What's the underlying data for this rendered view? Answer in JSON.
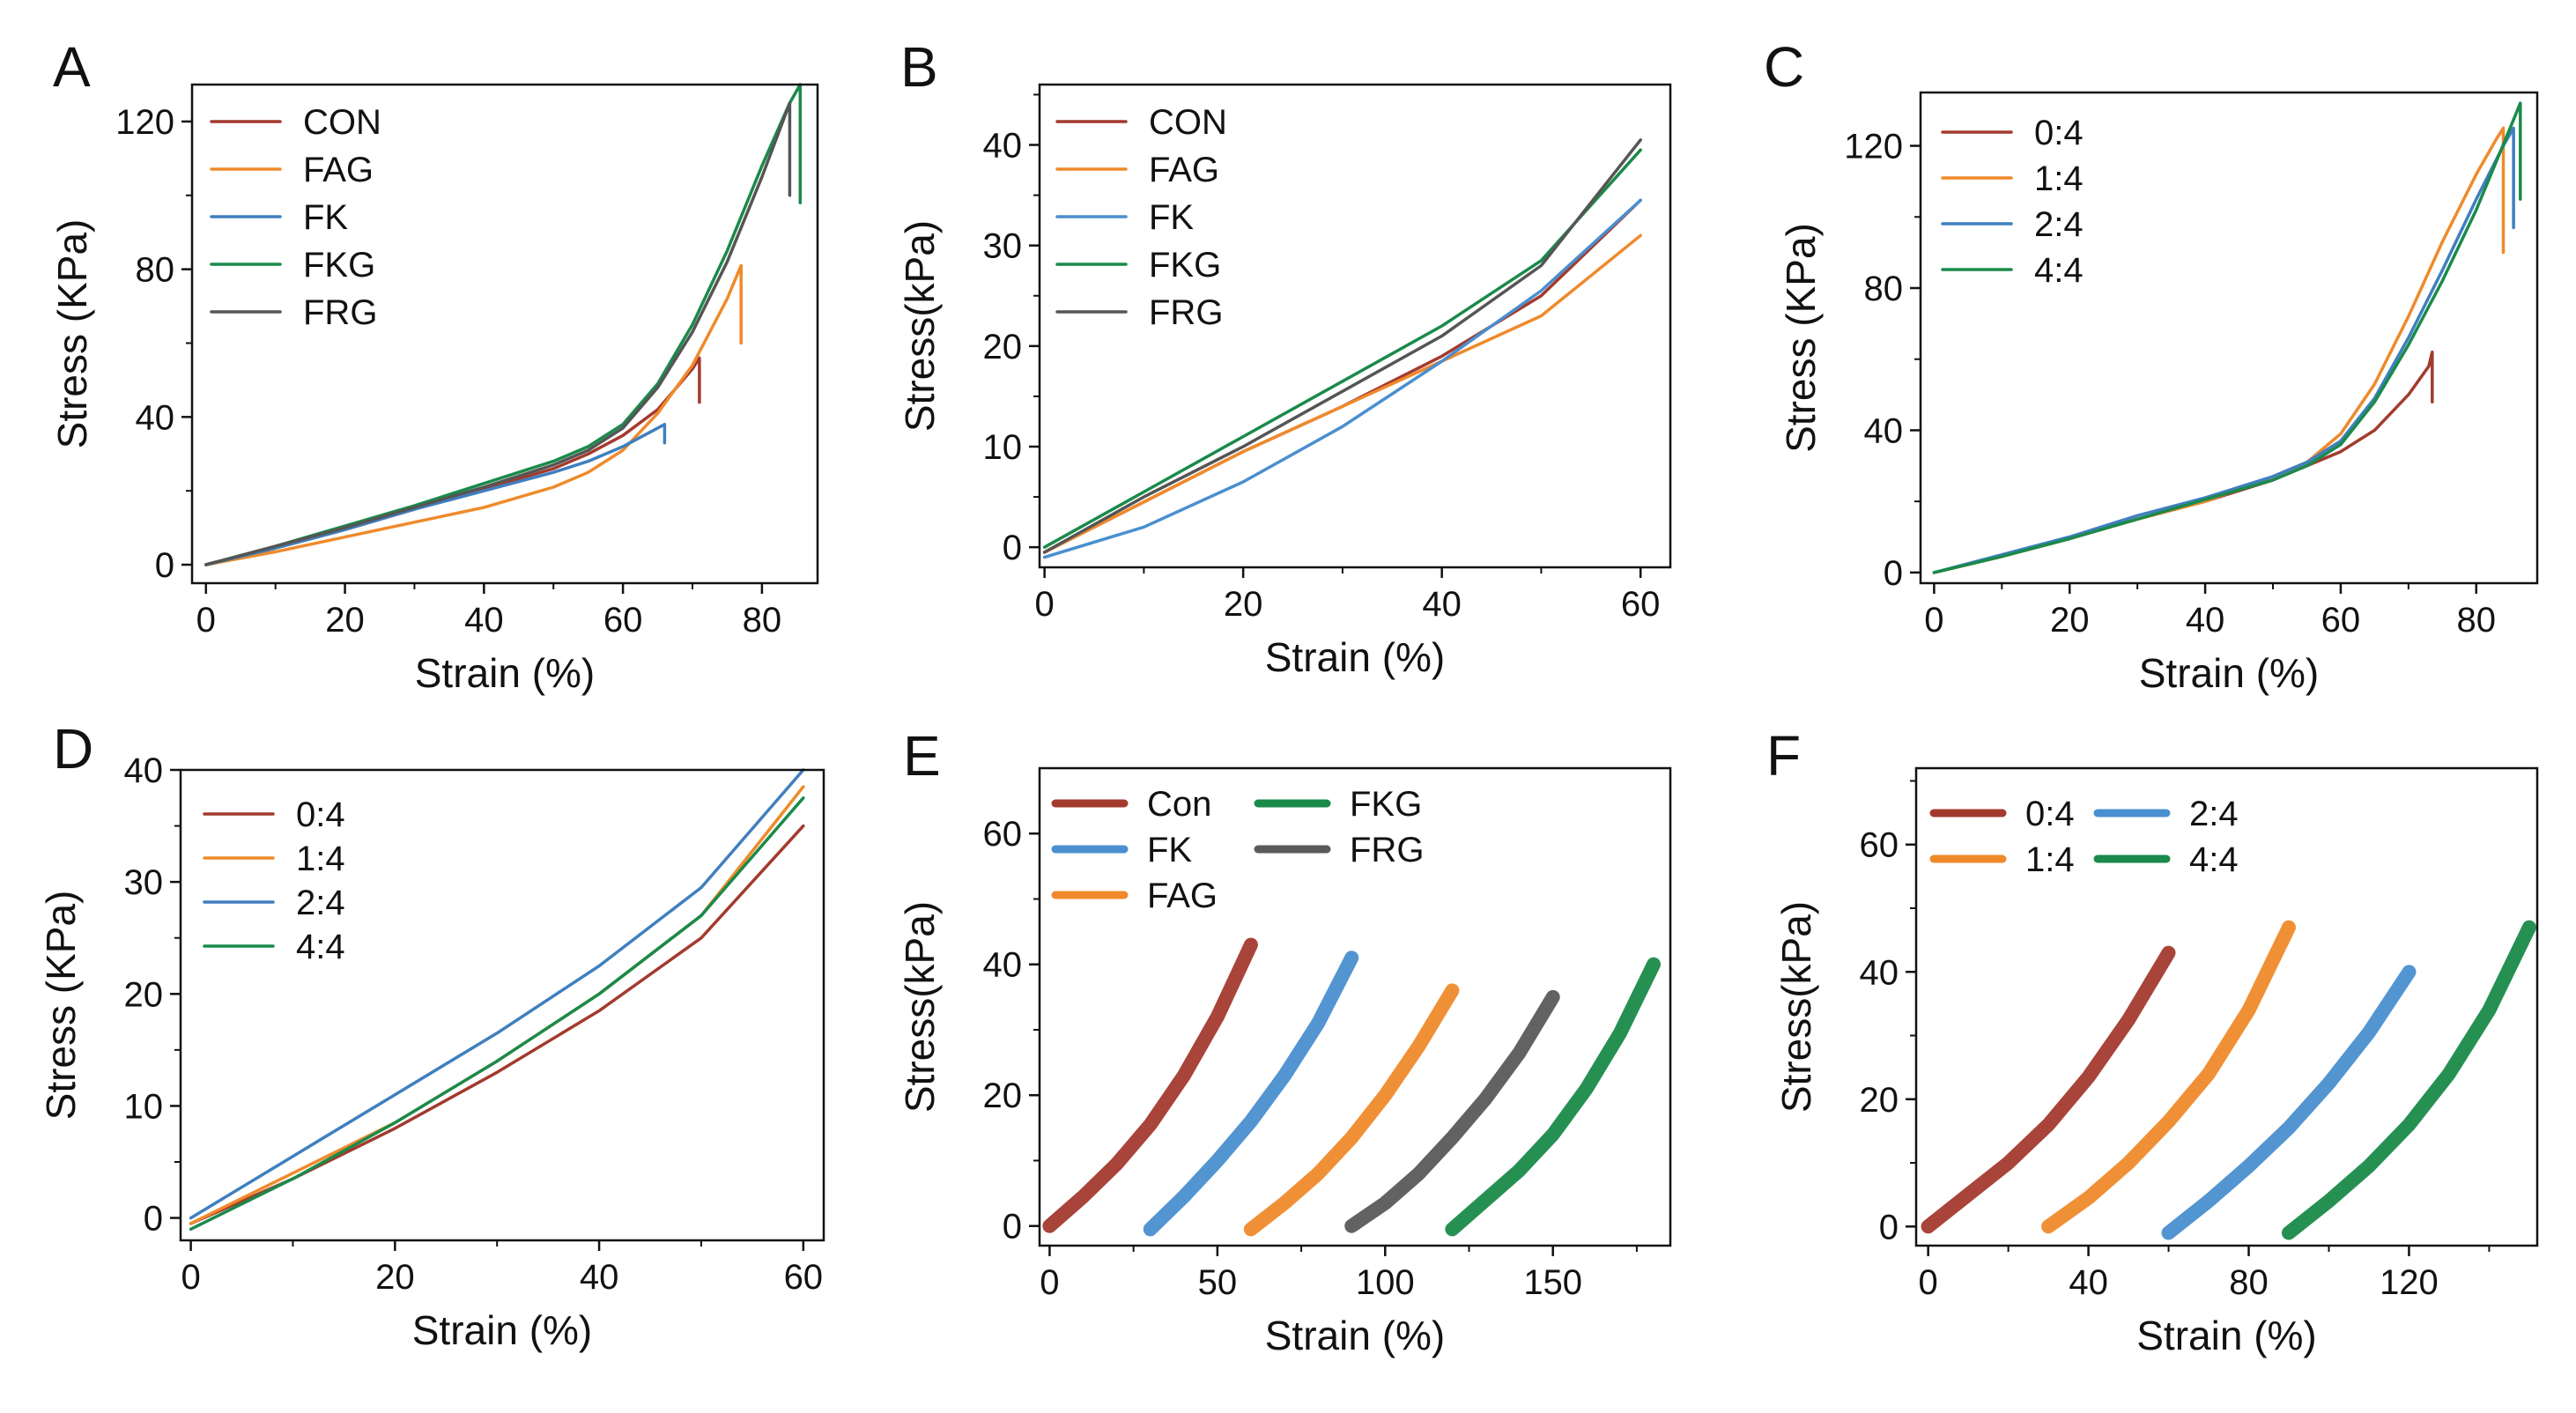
{
  "figure": {
    "type": "multi-panel-figure"
  },
  "chart_data": [
    {
      "panel": "A",
      "type": "line",
      "xlabel": "Strain (%)",
      "ylabel": "Stress (KPa)",
      "xlim": [
        -2,
        88
      ],
      "ylim": [
        -5,
        130
      ],
      "xticks": [
        0,
        20,
        40,
        60,
        80
      ],
      "yticks": [
        0,
        40,
        80,
        120
      ],
      "legend_pos": "top-left",
      "legend_layout": "single",
      "series": [
        {
          "name": "CON",
          "color": "#a33a2e",
          "x": [
            0,
            5,
            10,
            20,
            30,
            40,
            50,
            55,
            60,
            65,
            70,
            71,
            71
          ],
          "y": [
            0,
            2,
            4.5,
            9.5,
            15,
            20.5,
            26,
            30,
            35,
            42,
            53,
            56,
            44
          ]
        },
        {
          "name": "FAG",
          "color": "#ef8a2b",
          "x": [
            0,
            10,
            20,
            30,
            40,
            50,
            55,
            60,
            65,
            70,
            75,
            77,
            77
          ],
          "y": [
            0,
            3.5,
            7.5,
            11.5,
            15.5,
            21,
            25,
            31,
            41,
            54,
            72,
            81,
            60
          ]
        },
        {
          "name": "FK",
          "color": "#3f7fbf",
          "x": [
            0,
            10,
            20,
            30,
            40,
            50,
            55,
            60,
            65,
            66,
            66
          ],
          "y": [
            0,
            4.5,
            9.5,
            15,
            20,
            25,
            28,
            32,
            37,
            38,
            33
          ]
        },
        {
          "name": "FKG",
          "color": "#1a8a4a",
          "x": [
            0,
            10,
            20,
            30,
            40,
            50,
            55,
            60,
            65,
            70,
            75,
            80,
            84,
            85.5,
            85.5
          ],
          "y": [
            0,
            5,
            10.5,
            16,
            22,
            28,
            32,
            38,
            49,
            65,
            85,
            108,
            125,
            130,
            98
          ]
        },
        {
          "name": "FRG",
          "color": "#555555",
          "x": [
            0,
            10,
            20,
            30,
            40,
            50,
            55,
            60,
            65,
            70,
            75,
            80,
            83,
            84,
            84
          ],
          "y": [
            0,
            5,
            10,
            15.5,
            21,
            27,
            31,
            37,
            48,
            63,
            82,
            105,
            120,
            125,
            100
          ]
        }
      ]
    },
    {
      "panel": "B",
      "type": "line",
      "xlabel": "Strain (%)",
      "ylabel": "Stress(kPa)",
      "xlim": [
        -0.5,
        63
      ],
      "ylim": [
        -2,
        46
      ],
      "xticks": [
        0,
        20,
        40,
        60
      ],
      "yticks": [
        0,
        10,
        20,
        30,
        40
      ],
      "legend_pos": "top-left",
      "legend_layout": "single",
      "series": [
        {
          "name": "CON",
          "color": "#a33a2e",
          "x": [
            0,
            10,
            20,
            30,
            40,
            50,
            60
          ],
          "y": [
            -0.5,
            4.5,
            9.5,
            14,
            19,
            25,
            34.5
          ]
        },
        {
          "name": "FAG",
          "color": "#ef8a2b",
          "x": [
            0,
            10,
            20,
            30,
            40,
            50,
            60
          ],
          "y": [
            -0.5,
            4.5,
            9.5,
            14,
            18.5,
            23,
            31
          ]
        },
        {
          "name": "FK",
          "color": "#4a8fcf",
          "x": [
            0,
            10,
            20,
            30,
            40,
            50,
            60
          ],
          "y": [
            -1,
            2,
            6.5,
            12,
            18.5,
            25.5,
            34.5
          ]
        },
        {
          "name": "FKG",
          "color": "#1a8a4a",
          "x": [
            0,
            10,
            20,
            30,
            40,
            50,
            60
          ],
          "y": [
            0,
            5.5,
            11,
            16.5,
            22,
            28.5,
            39.5
          ]
        },
        {
          "name": "FRG",
          "color": "#555555",
          "x": [
            0,
            10,
            20,
            30,
            40,
            50,
            60
          ],
          "y": [
            -0.5,
            5,
            10,
            15.5,
            21,
            28,
            40.5
          ]
        }
      ]
    },
    {
      "panel": "C",
      "type": "line",
      "xlabel": "Strain (%)",
      "ylabel": "Stress (KPa)",
      "xlim": [
        -2,
        89
      ],
      "ylim": [
        -3,
        135
      ],
      "xticks": [
        0,
        20,
        40,
        60,
        80
      ],
      "yticks": [
        0,
        40,
        80,
        120
      ],
      "legend_pos": "top-left",
      "legend_layout": "single",
      "series": [
        {
          "name": "0:4",
          "color": "#a33a2e",
          "x": [
            0,
            10,
            20,
            30,
            40,
            50,
            55,
            60,
            65,
            70,
            73,
            73.5,
            73.5
          ],
          "y": [
            0,
            4.5,
            9.5,
            15,
            20,
            26,
            30,
            34,
            40,
            50,
            58,
            62,
            48
          ]
        },
        {
          "name": "1:4",
          "color": "#ef8a2b",
          "x": [
            0,
            10,
            20,
            30,
            40,
            50,
            55,
            60,
            65,
            70,
            75,
            80,
            83,
            84,
            84
          ],
          "y": [
            0,
            4.5,
            9.5,
            15,
            20,
            27,
            31,
            39,
            53,
            72,
            93,
            112,
            122,
            125,
            90
          ]
        },
        {
          "name": "2:4",
          "color": "#3f7fbf",
          "x": [
            0,
            10,
            20,
            30,
            40,
            50,
            55,
            60,
            65,
            70,
            75,
            80,
            84,
            85.5,
            85.5
          ],
          "y": [
            0,
            5,
            10,
            16,
            21,
            27,
            31,
            37,
            49,
            66,
            85,
            105,
            120,
            125,
            97
          ]
        },
        {
          "name": "4:4",
          "color": "#1a8a4a",
          "x": [
            0,
            10,
            20,
            30,
            40,
            50,
            55,
            60,
            65,
            70,
            75,
            80,
            85,
            86.5,
            86.5
          ],
          "y": [
            0,
            4.5,
            9.5,
            15,
            20.5,
            26,
            30,
            36,
            48,
            64,
            82,
            102,
            125,
            132,
            105
          ]
        }
      ]
    },
    {
      "panel": "D",
      "type": "line",
      "xlabel": "Strain (%)",
      "ylabel": "Stress (KPa)",
      "xlim": [
        -1,
        62
      ],
      "ylim": [
        -2,
        40
      ],
      "xticks": [
        0,
        20,
        40,
        60
      ],
      "yticks": [
        0,
        10,
        20,
        30,
        40
      ],
      "legend_pos": "top-left",
      "legend_layout": "single",
      "series": [
        {
          "name": "0:4",
          "color": "#a33a2e",
          "x": [
            0,
            10,
            20,
            30,
            40,
            50,
            60
          ],
          "y": [
            -0.5,
            3.5,
            8,
            13,
            18.5,
            25,
            35
          ]
        },
        {
          "name": "1:4",
          "color": "#ef8a2b",
          "x": [
            0,
            10,
            20,
            30,
            40,
            50,
            60
          ],
          "y": [
            -0.5,
            4,
            8.5,
            14,
            20,
            27,
            38.5
          ]
        },
        {
          "name": "2:4",
          "color": "#3f7fbf",
          "x": [
            0,
            10,
            20,
            30,
            40,
            50,
            60
          ],
          "y": [
            0,
            5.5,
            11,
            16.5,
            22.5,
            29.5,
            40
          ]
        },
        {
          "name": "4:4",
          "color": "#1a8a4a",
          "x": [
            0,
            10,
            20,
            30,
            40,
            50,
            60
          ],
          "y": [
            -1,
            3.5,
            8.5,
            14,
            20,
            27,
            37.5
          ]
        }
      ]
    },
    {
      "panel": "E",
      "type": "line",
      "xlabel": "Strain (%)",
      "ylabel": "Stress(kPa)",
      "xlim": [
        -3,
        185
      ],
      "ylim": [
        -3,
        70
      ],
      "xticks": [
        0,
        50,
        100,
        150
      ],
      "yticks": [
        0,
        20,
        40,
        60
      ],
      "legend_pos": "top-left",
      "legend_layout": "three-by-two",
      "series": [
        {
          "name": "Con",
          "color": "#a33a2e",
          "x": [
            0,
            10,
            20,
            30,
            40,
            50,
            60
          ],
          "y": [
            0,
            4.5,
            9.5,
            15.5,
            23,
            32,
            43
          ]
        },
        {
          "name": "FK",
          "color": "#4a8fcf",
          "x": [
            30,
            40,
            50,
            60,
            70,
            80,
            90
          ],
          "y": [
            -0.5,
            4.5,
            10,
            16,
            23,
            31,
            41
          ]
        },
        {
          "name": "FAG",
          "color": "#ef8a2b",
          "x": [
            60,
            70,
            80,
            90,
            100,
            110,
            120
          ],
          "y": [
            -0.5,
            3.5,
            8,
            13.5,
            20,
            27.5,
            36
          ]
        },
        {
          "name": "FKG",
          "color": "#1a8a4a",
          "x": [
            120,
            130,
            140,
            150,
            160,
            170,
            180
          ],
          "y": [
            -0.5,
            4,
            8.5,
            14,
            21,
            29.5,
            40
          ]
        },
        {
          "name": "FRG",
          "color": "#5a5a5a",
          "x": [
            90,
            100,
            110,
            120,
            130,
            140,
            150
          ],
          "y": [
            0,
            3.5,
            8,
            13.5,
            19.5,
            26.5,
            35
          ]
        }
      ]
    },
    {
      "panel": "F",
      "type": "line",
      "xlabel": "Strain (%)",
      "ylabel": "Stress(kPa)",
      "xlim": [
        -3,
        152
      ],
      "ylim": [
        -3,
        72
      ],
      "xticks": [
        0,
        40,
        80,
        120
      ],
      "yticks": [
        0,
        20,
        40,
        60
      ],
      "legend_pos": "top-left",
      "legend_layout": "two-by-two",
      "series": [
        {
          "name": "0:4",
          "color": "#a33a2e",
          "x": [
            0,
            10,
            20,
            30,
            40,
            50,
            60
          ],
          "y": [
            0,
            5,
            10,
            16,
            23.5,
            32.5,
            43
          ]
        },
        {
          "name": "1:4",
          "color": "#ef8a2b",
          "x": [
            30,
            40,
            50,
            60,
            70,
            80,
            90
          ],
          "y": [
            0,
            4.5,
            10,
            16.5,
            24,
            34,
            47
          ]
        },
        {
          "name": "2:4",
          "color": "#4a8fcf",
          "x": [
            60,
            70,
            80,
            90,
            100,
            110,
            120
          ],
          "y": [
            -1,
            4,
            9.5,
            15.5,
            22.5,
            30.5,
            40
          ]
        },
        {
          "name": "4:4",
          "color": "#1a8a4a",
          "x": [
            90,
            100,
            110,
            120,
            130,
            140,
            150
          ],
          "y": [
            -1,
            4,
            9.5,
            16,
            24,
            34,
            47
          ]
        }
      ]
    }
  ]
}
